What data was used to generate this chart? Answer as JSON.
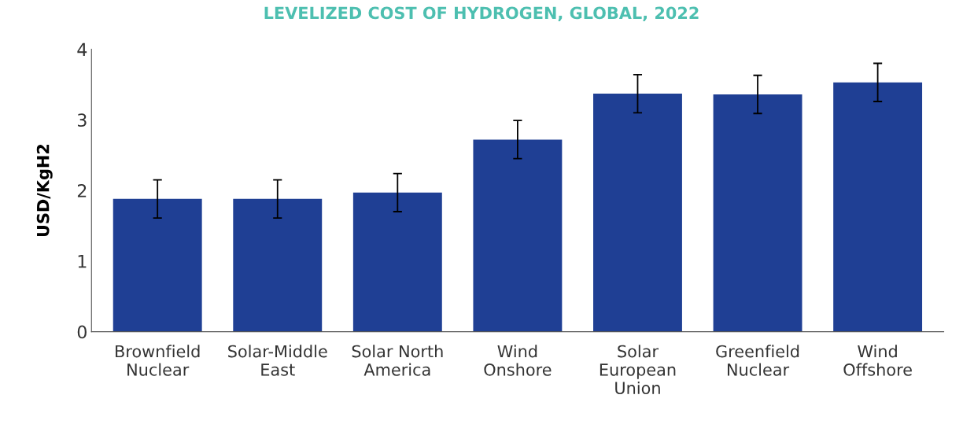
{
  "chart_data": {
    "type": "bar",
    "title": "LEVELIZED COST OF HYDROGEN, GLOBAL, 2022",
    "ylabel": "USD/KgH2",
    "categories": [
      "Brownfield\nNuclear",
      "Solar-Middle\nEast",
      "Solar North\nAmerica",
      "Wind\nOnshore",
      "Solar\nEuropean\nUnion",
      "Greenfield\nNuclear",
      "Wind\nOffshore"
    ],
    "values": [
      1.88,
      1.88,
      1.97,
      2.72,
      3.37,
      3.36,
      3.53
    ],
    "errors": [
      0.27,
      0.27,
      0.27,
      0.27,
      0.27,
      0.27,
      0.27
    ],
    "color": "#1f3f94",
    "ylim": [
      0,
      4
    ],
    "yticks": [
      0,
      1,
      2,
      3,
      4
    ],
    "grid": false,
    "legend": false
  }
}
